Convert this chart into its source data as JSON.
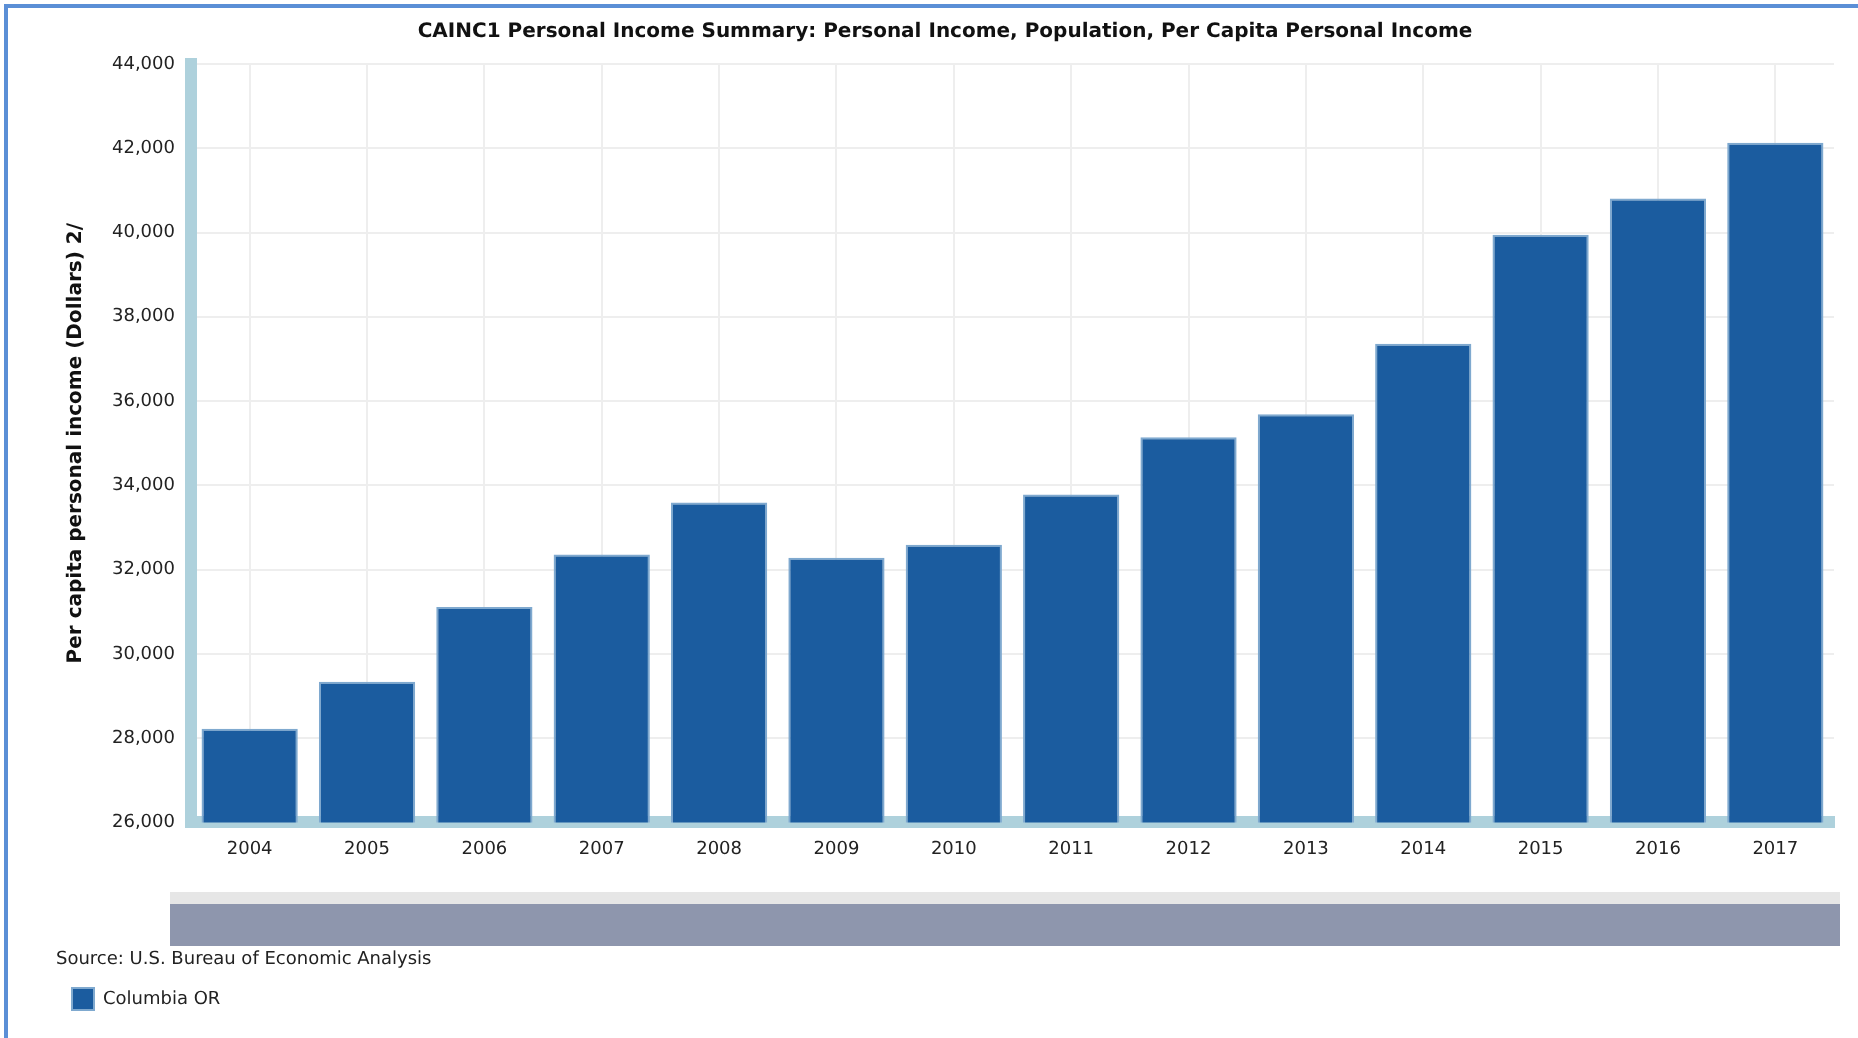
{
  "chart_data": {
    "type": "bar",
    "title": "CAINC1 Personal Income Summary: Personal Income, Population, Per Capita Personal Income",
    "ylabel": "Per capita personal income (Dollars) 2/",
    "categories": [
      "2004",
      "2005",
      "2006",
      "2007",
      "2008",
      "2009",
      "2010",
      "2011",
      "2012",
      "2013",
      "2014",
      "2015",
      "2016",
      "2017"
    ],
    "series": [
      {
        "name": "Columbia OR",
        "color": "#1b5c9f",
        "values": [
          28220,
          29340,
          31110,
          32360,
          33590,
          32280,
          32590,
          33780,
          35140,
          35690,
          37360,
          39950,
          40810,
          42130
        ]
      }
    ],
    "ylim": [
      26000,
      44000
    ],
    "yticks": [
      {
        "value": 26000,
        "label": "26,000"
      },
      {
        "value": 28000,
        "label": "28,000"
      },
      {
        "value": 30000,
        "label": "30,000"
      },
      {
        "value": 32000,
        "label": "32,000"
      },
      {
        "value": 34000,
        "label": "34,000"
      },
      {
        "value": 36000,
        "label": "36,000"
      },
      {
        "value": 38000,
        "label": "38,000"
      },
      {
        "value": 40000,
        "label": "40,000"
      },
      {
        "value": 42000,
        "label": "42,000"
      },
      {
        "value": 44000,
        "label": "44,000"
      }
    ],
    "grid": true,
    "legend": "bottom left",
    "annotations": [
      "Source: U.S. Bureau of Economic Analysis"
    ]
  }
}
